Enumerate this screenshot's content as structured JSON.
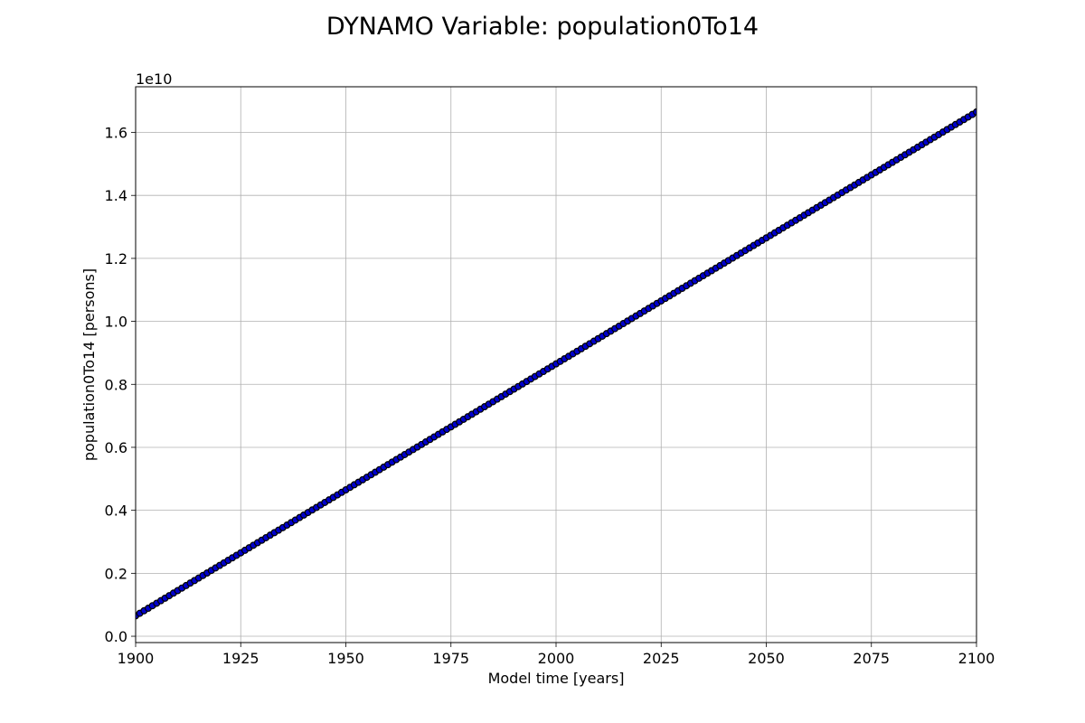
{
  "chart_data": {
    "type": "line",
    "title": "DYNAMO Variable: population0To14",
    "xlabel": "Model time [years]",
    "ylabel": "population0To14 [persons]",
    "y_offset_label": "1e10",
    "xlim": [
      1900,
      2100
    ],
    "ylim": [
      -0.02,
      1.745
    ],
    "x_ticks": [
      1900,
      1925,
      1950,
      1975,
      2000,
      2025,
      2050,
      2075,
      2100
    ],
    "y_ticks": [
      0.0,
      0.2,
      0.4,
      0.6,
      0.8,
      1.0,
      1.2,
      1.4,
      1.6
    ],
    "x_tick_labels": [
      "1900",
      "1925",
      "1950",
      "1975",
      "2000",
      "2025",
      "2050",
      "2075",
      "2100"
    ],
    "y_tick_labels": [
      "0.0",
      "0.2",
      "0.4",
      "0.6",
      "0.8",
      "1.0",
      "1.2",
      "1.4",
      "1.6"
    ],
    "grid": true,
    "series": [
      {
        "color": "#0000cc",
        "marker_edge_color": "#000000",
        "marker": "circle",
        "x": [
          1900,
          1901,
          1902,
          1903,
          1904,
          1905,
          1906,
          1907,
          1908,
          1909,
          1910,
          1911,
          1912,
          1913,
          1914,
          1915,
          1916,
          1917,
          1918,
          1919,
          1920,
          1921,
          1922,
          1923,
          1924,
          1925,
          1926,
          1927,
          1928,
          1929,
          1930,
          1931,
          1932,
          1933,
          1934,
          1935,
          1936,
          1937,
          1938,
          1939,
          1940,
          1941,
          1942,
          1943,
          1944,
          1945,
          1946,
          1947,
          1948,
          1949,
          1950,
          1951,
          1952,
          1953,
          1954,
          1955,
          1956,
          1957,
          1958,
          1959,
          1960,
          1961,
          1962,
          1963,
          1964,
          1965,
          1966,
          1967,
          1968,
          1969,
          1970,
          1971,
          1972,
          1973,
          1974,
          1975,
          1976,
          1977,
          1978,
          1979,
          1980,
          1981,
          1982,
          1983,
          1984,
          1985,
          1986,
          1987,
          1988,
          1989,
          1990,
          1991,
          1992,
          1993,
          1994,
          1995,
          1996,
          1997,
          1998,
          1999,
          2000,
          2001,
          2002,
          2003,
          2004,
          2005,
          2006,
          2007,
          2008,
          2009,
          2010,
          2011,
          2012,
          2013,
          2014,
          2015,
          2016,
          2017,
          2018,
          2019,
          2020,
          2021,
          2022,
          2023,
          2024,
          2025,
          2026,
          2027,
          2028,
          2029,
          2030,
          2031,
          2032,
          2033,
          2034,
          2035,
          2036,
          2037,
          2038,
          2039,
          2040,
          2041,
          2042,
          2043,
          2044,
          2045,
          2046,
          2047,
          2048,
          2049,
          2050,
          2051,
          2052,
          2053,
          2054,
          2055,
          2056,
          2057,
          2058,
          2059,
          2060,
          2061,
          2062,
          2063,
          2064,
          2065,
          2066,
          2067,
          2068,
          2069,
          2070,
          2071,
          2072,
          2073,
          2074,
          2075,
          2076,
          2077,
          2078,
          2079,
          2080,
          2081,
          2082,
          2083,
          2084,
          2085,
          2086,
          2087,
          2088,
          2089,
          2090,
          2091,
          2092,
          2093,
          2094,
          2095,
          2096,
          2097,
          2098,
          2099,
          2100
        ],
        "y": [
          0.065,
          0.073,
          0.081,
          0.089,
          0.097,
          0.105,
          0.113,
          0.121,
          0.129,
          0.137,
          0.145,
          0.153,
          0.161,
          0.169,
          0.177,
          0.185,
          0.193,
          0.201,
          0.209,
          0.217,
          0.225,
          0.233,
          0.241,
          0.249,
          0.257,
          0.265,
          0.273,
          0.281,
          0.289,
          0.297,
          0.305,
          0.313,
          0.321,
          0.329,
          0.337,
          0.345,
          0.353,
          0.361,
          0.369,
          0.377,
          0.385,
          0.393,
          0.401,
          0.409,
          0.417,
          0.425,
          0.433,
          0.441,
          0.449,
          0.457,
          0.465,
          0.473,
          0.481,
          0.489,
          0.497,
          0.505,
          0.513,
          0.521,
          0.529,
          0.537,
          0.545,
          0.553,
          0.561,
          0.569,
          0.577,
          0.585,
          0.593,
          0.601,
          0.609,
          0.617,
          0.625,
          0.633,
          0.641,
          0.649,
          0.657,
          0.665,
          0.673,
          0.681,
          0.689,
          0.697,
          0.705,
          0.713,
          0.721,
          0.729,
          0.737,
          0.745,
          0.753,
          0.761,
          0.769,
          0.777,
          0.785,
          0.793,
          0.801,
          0.809,
          0.817,
          0.825,
          0.833,
          0.841,
          0.849,
          0.857,
          0.865,
          0.873,
          0.881,
          0.889,
          0.897,
          0.905,
          0.913,
          0.921,
          0.929,
          0.937,
          0.945,
          0.953,
          0.961,
          0.969,
          0.977,
          0.985,
          0.993,
          1.001,
          1.009,
          1.017,
          1.025,
          1.033,
          1.041,
          1.049,
          1.057,
          1.065,
          1.073,
          1.081,
          1.089,
          1.097,
          1.105,
          1.113,
          1.121,
          1.129,
          1.137,
          1.145,
          1.153,
          1.161,
          1.169,
          1.177,
          1.185,
          1.193,
          1.201,
          1.209,
          1.217,
          1.225,
          1.233,
          1.241,
          1.249,
          1.257,
          1.265,
          1.273,
          1.281,
          1.289,
          1.297,
          1.305,
          1.313,
          1.321,
          1.329,
          1.337,
          1.345,
          1.353,
          1.361,
          1.369,
          1.377,
          1.385,
          1.393,
          1.401,
          1.409,
          1.417,
          1.425,
          1.433,
          1.441,
          1.449,
          1.457,
          1.465,
          1.473,
          1.481,
          1.489,
          1.497,
          1.505,
          1.513,
          1.521,
          1.529,
          1.537,
          1.545,
          1.553,
          1.561,
          1.569,
          1.577,
          1.585,
          1.593,
          1.601,
          1.609,
          1.617,
          1.625,
          1.633,
          1.641,
          1.649,
          1.657,
          1.665
        ]
      }
    ]
  }
}
